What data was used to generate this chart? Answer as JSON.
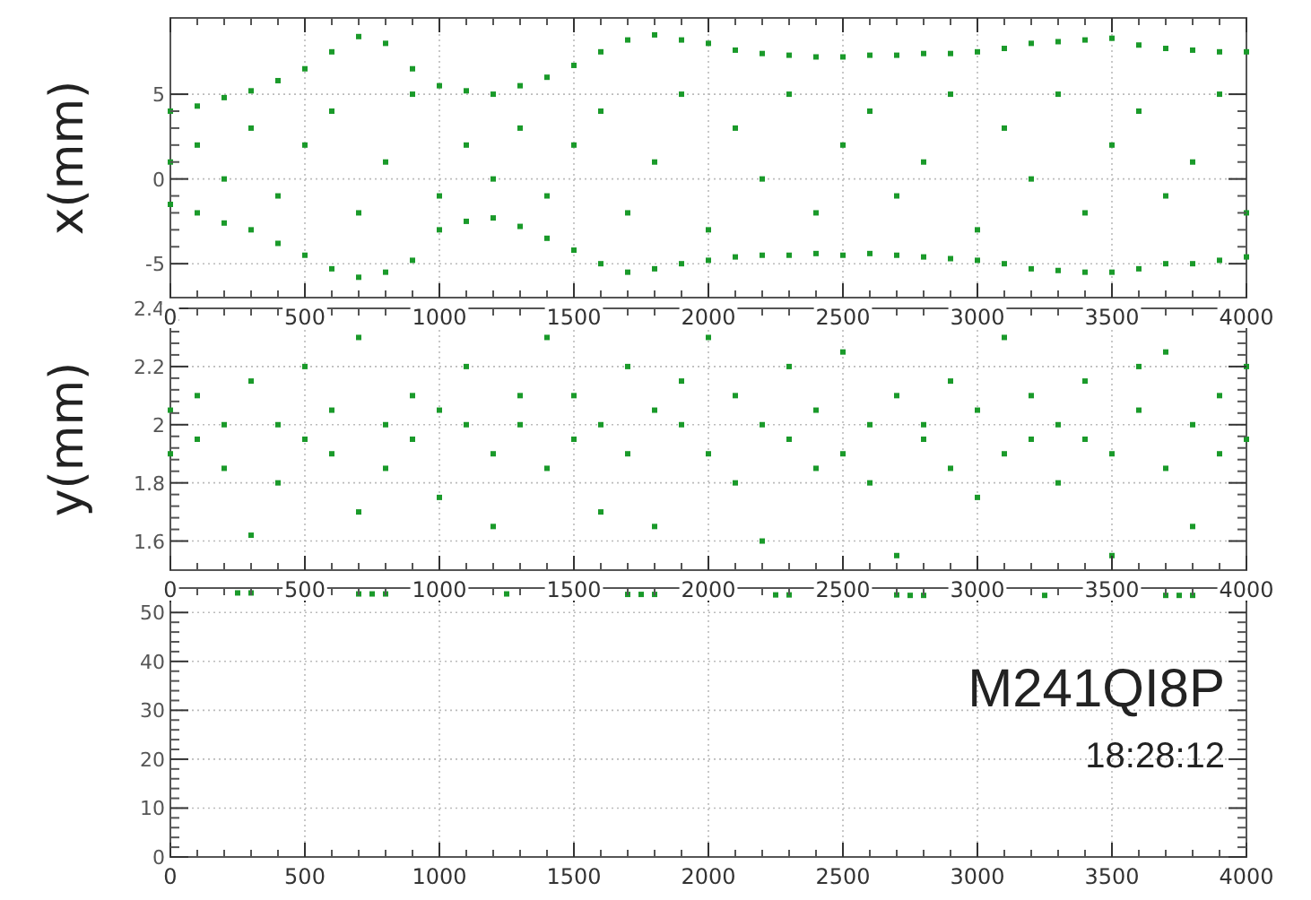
{
  "chart_data": [
    {
      "type": "scatter",
      "ylabel": "x(mm)",
      "xlim": [
        0,
        4000
      ],
      "xticks": [
        0,
        500,
        1000,
        1500,
        2000,
        2500,
        3000,
        3500,
        4000
      ],
      "ylim": [
        -7,
        9.5
      ],
      "yticks": [
        -5,
        0,
        5
      ],
      "grid": true,
      "marker": "square",
      "series": [
        {
          "color": "#1a9a2a",
          "x": [
            0,
            0,
            0,
            100,
            100,
            100,
            200,
            200,
            200,
            300,
            300,
            300,
            400,
            400,
            400,
            500,
            500,
            500,
            600,
            600,
            600,
            700,
            700,
            700,
            800,
            800,
            800,
            900,
            900,
            900,
            1000,
            1000,
            1000,
            1100,
            1100,
            1100,
            1200,
            1200,
            1200,
            1300,
            1300,
            1300,
            1400,
            1400,
            1400,
            1500,
            1500,
            1500,
            1600,
            1600,
            1600,
            1700,
            1700,
            1700,
            1800,
            1800,
            1800,
            1900,
            1900,
            1900,
            2000,
            2000,
            2000,
            2100,
            2100,
            2100,
            2200,
            2200,
            2200,
            2300,
            2300,
            2300,
            2400,
            2400,
            2400,
            2500,
            2500,
            2500,
            2600,
            2600,
            2600,
            2700,
            2700,
            2700,
            2800,
            2800,
            2800,
            2900,
            2900,
            2900,
            3000,
            3000,
            3000,
            3100,
            3100,
            3100,
            3200,
            3200,
            3200,
            3300,
            3300,
            3300,
            3400,
            3400,
            3400,
            3500,
            3500,
            3500,
            3600,
            3600,
            3600,
            3700,
            3700,
            3700,
            3800,
            3800,
            3800,
            3900,
            3900,
            3900,
            4000,
            4000,
            4000
          ],
          "values": [
            4,
            -1.5,
            1,
            4.3,
            -2,
            2,
            4.8,
            -2.6,
            0,
            5.2,
            -3,
            3,
            5.8,
            -3.8,
            -1,
            6.5,
            -4.5,
            2,
            7.5,
            -5.3,
            4,
            8.4,
            -5.8,
            -2,
            8,
            -5.5,
            1,
            6.5,
            -4.8,
            5,
            5.5,
            -3,
            -1,
            5.2,
            -2.5,
            2,
            5,
            -2.3,
            0,
            5.5,
            -2.8,
            3,
            6,
            -3.5,
            -1,
            6.7,
            -4.2,
            2,
            7.5,
            -5,
            4,
            8.2,
            -5.5,
            -2,
            8.5,
            -5.3,
            1,
            8.2,
            -5,
            5,
            8,
            -4.8,
            -3,
            7.6,
            -4.6,
            3,
            7.4,
            -4.5,
            0,
            7.3,
            -4.5,
            5,
            7.2,
            -4.4,
            -2,
            7.2,
            -4.5,
            2,
            7.3,
            -4.4,
            4,
            7.3,
            -4.5,
            -1,
            7.4,
            -4.6,
            1,
            7.4,
            -4.7,
            5,
            7.5,
            -4.8,
            -3,
            7.7,
            -5,
            3,
            8,
            -5.3,
            0,
            8.1,
            -5.4,
            5,
            8.2,
            -5.5,
            -2,
            8.3,
            -5.5,
            2,
            7.9,
            -5.3,
            4,
            7.7,
            -5,
            -1,
            7.6,
            -5,
            1,
            7.5,
            -4.8,
            5,
            7.5,
            -4.6,
            -2
          ]
        }
      ]
    },
    {
      "type": "scatter",
      "ylabel": "y(mm)",
      "xlim": [
        0,
        4000
      ],
      "xticks": [
        0,
        500,
        1000,
        1500,
        2000,
        2500,
        3000,
        3500,
        4000
      ],
      "ylim": [
        1.5,
        2.4
      ],
      "yticks": [
        1.6,
        1.8,
        2,
        2.2,
        2.4
      ],
      "grid": true,
      "marker": "square",
      "series": [
        {
          "color": "#1a9a2a",
          "x": [
            0,
            0,
            100,
            100,
            200,
            200,
            300,
            300,
            400,
            400,
            500,
            500,
            600,
            600,
            700,
            700,
            800,
            800,
            900,
            900,
            1000,
            1000,
            1100,
            1100,
            1200,
            1200,
            1300,
            1300,
            1400,
            1400,
            1500,
            1500,
            1600,
            1600,
            1700,
            1700,
            1800,
            1800,
            1900,
            1900,
            2000,
            2000,
            2100,
            2100,
            2200,
            2200,
            2300,
            2300,
            2400,
            2400,
            2500,
            2500,
            2600,
            2600,
            2700,
            2700,
            2800,
            2800,
            2900,
            2900,
            3000,
            3000,
            3100,
            3100,
            3200,
            3200,
            3300,
            3300,
            3400,
            3400,
            3500,
            3500,
            3600,
            3600,
            3700,
            3700,
            3800,
            3800,
            3900,
            3900,
            4000,
            4000
          ],
          "values": [
            2.05,
            1.9,
            2.1,
            1.95,
            1.85,
            2.0,
            2.15,
            1.62,
            2.0,
            1.8,
            2.2,
            1.95,
            1.9,
            2.05,
            2.3,
            1.7,
            2.0,
            1.85,
            2.1,
            1.95,
            1.75,
            2.05,
            2.0,
            2.2,
            1.9,
            1.65,
            2.1,
            2.0,
            2.3,
            1.85,
            1.95,
            2.1,
            2.0,
            1.7,
            2.2,
            1.9,
            1.65,
            2.05,
            2.0,
            2.15,
            1.9,
            2.3,
            2.1,
            1.8,
            2.0,
            1.6,
            1.95,
            2.2,
            2.05,
            1.85,
            2.25,
            1.9,
            1.8,
            2.0,
            2.1,
            1.55,
            2.0,
            1.95,
            1.85,
            2.15,
            2.05,
            1.75,
            2.3,
            1.9,
            1.95,
            2.1,
            2.0,
            1.8,
            2.15,
            1.95,
            1.9,
            1.55,
            2.05,
            2.2,
            1.85,
            2.25,
            2.0,
            1.65,
            2.1,
            1.9,
            2.2,
            1.95
          ]
        }
      ]
    },
    {
      "type": "scatter",
      "xlim": [
        0,
        4000
      ],
      "xticks": [
        0,
        500,
        1000,
        1500,
        2000,
        2500,
        3000,
        3500,
        4000
      ],
      "ylim": [
        0,
        55
      ],
      "yticks": [
        0,
        10,
        20,
        30,
        40,
        50
      ],
      "grid": true,
      "marker": "square",
      "annotations": [
        "M241QI8P",
        "18:28:12"
      ],
      "series": [
        {
          "color": "#1a9a2a",
          "x": [
            250,
            300,
            700,
            750,
            800,
            1250,
            1700,
            1750,
            1800,
            2250,
            2300,
            2700,
            2750,
            2800,
            3250,
            3700,
            3750,
            3800
          ],
          "values": [
            54,
            54,
            53.8,
            53.8,
            53.8,
            53.8,
            53.7,
            53.7,
            53.7,
            53.6,
            53.6,
            53.6,
            53.5,
            53.5,
            53.5,
            53.5,
            53.5,
            53.5
          ]
        }
      ]
    }
  ]
}
